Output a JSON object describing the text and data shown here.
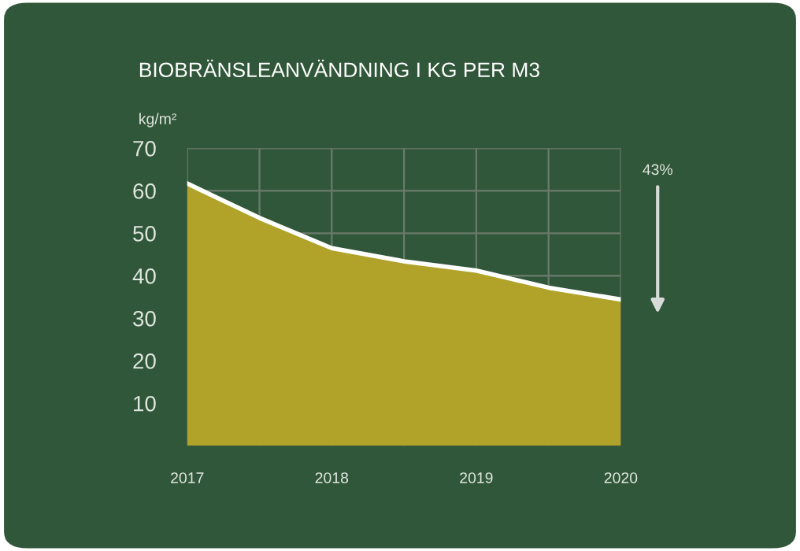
{
  "chart_data": {
    "type": "area",
    "title": "BIOBRÄNSLEANVÄNDNING I KG PER M3",
    "ylabel": "kg/m²",
    "x": [
      2017,
      2017.5,
      2018,
      2018.5,
      2019,
      2019.5,
      2020
    ],
    "series": [
      {
        "color": "#b1a32a",
        "values": [
          61.7,
          53.6,
          46.5,
          43.4,
          41.2,
          37.2,
          34.4
        ]
      }
    ],
    "xlim": [
      2017,
      2020
    ],
    "xticks": [
      2017,
      {
        "value": 2017.5,
        "label": null
      },
      2018,
      {
        "value": 2018.5,
        "label": null
      },
      2019,
      {
        "value": 2019.5,
        "label": null
      },
      2020
    ],
    "ylim": [
      0,
      70
    ],
    "yticks": [
      10,
      20,
      30,
      40,
      50,
      60,
      70
    ],
    "grid": true,
    "annotations": [
      "43%"
    ]
  }
}
